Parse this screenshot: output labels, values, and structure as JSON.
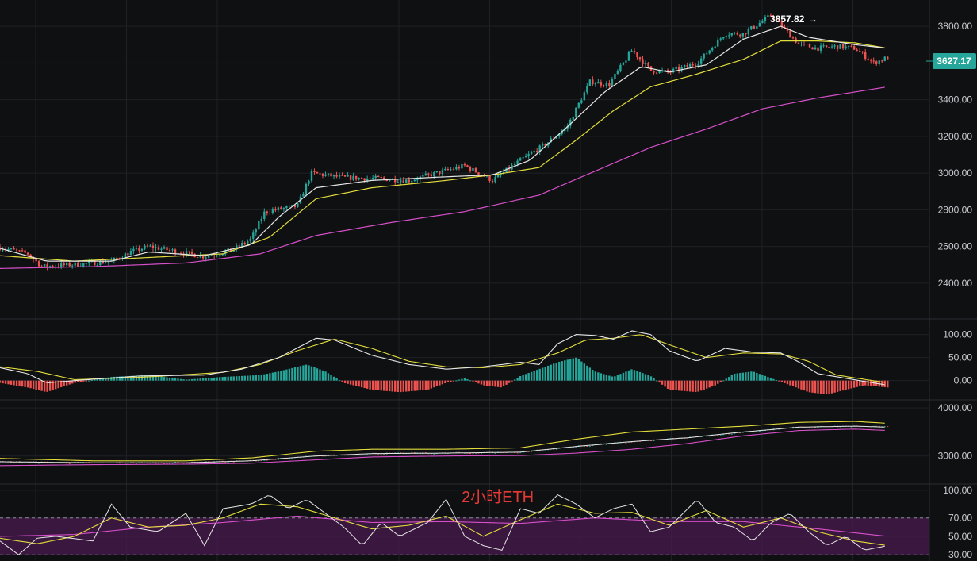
{
  "chart_title": "2小时ETH",
  "colors": {
    "background": "#0f1012",
    "grid": "#1f2126",
    "up": "#26a69a",
    "down": "#ef5350",
    "ma_fast": "#e6e6e6",
    "ma_mid": "#e3dd3c",
    "ma_slow": "#d64fc9",
    "rsi_band": "#4a1a4f",
    "price_tag": "#26a69a"
  },
  "main_panel": {
    "high_label": "3857.82",
    "last_price": "3627.17",
    "ticks": [
      {
        "value": 3800,
        "label": "3800.00"
      },
      {
        "value": 3600,
        "label": "3600.00"
      },
      {
        "value": 3400,
        "label": "3400.00"
      },
      {
        "value": 3200,
        "label": "3200.00"
      },
      {
        "value": 3000,
        "label": "3000.00"
      },
      {
        "value": 2800,
        "label": "2800.00"
      },
      {
        "value": 2600,
        "label": "2600.00"
      },
      {
        "value": 2400,
        "label": "2400.00"
      }
    ]
  },
  "macd_panel": {
    "ticks": [
      {
        "value": 100,
        "label": "100.00"
      },
      {
        "value": 50,
        "label": "50.00"
      },
      {
        "value": 0,
        "label": "0.00"
      }
    ]
  },
  "boll_panel": {
    "ticks": [
      {
        "value": 4000,
        "label": "4000.00"
      },
      {
        "value": 3000,
        "label": "3000.00"
      }
    ]
  },
  "rsi_panel": {
    "ticks": [
      {
        "value": 100,
        "label": "100.00"
      },
      {
        "value": 70,
        "label": "70.00"
      },
      {
        "value": 50,
        "label": "50.00"
      },
      {
        "value": 30,
        "label": "30.00"
      }
    ]
  },
  "chart_data": [
    {
      "type": "candlestick",
      "title": "2小时ETH",
      "ylim": [
        2300,
        3900
      ],
      "price_path": [
        [
          0,
          2595
        ],
        [
          0.03,
          2560
        ],
        [
          0.045,
          2490
        ],
        [
          0.09,
          2505
        ],
        [
          0.12,
          2520
        ],
        [
          0.14,
          2570
        ],
        [
          0.16,
          2600
        ],
        [
          0.22,
          2545
        ],
        [
          0.25,
          2580
        ],
        [
          0.27,
          2640
        ],
        [
          0.285,
          2790
        ],
        [
          0.32,
          2820
        ],
        [
          0.335,
          3000
        ],
        [
          0.37,
          2975
        ],
        [
          0.41,
          2970
        ],
        [
          0.44,
          2960
        ],
        [
          0.47,
          3000
        ],
        [
          0.5,
          3040
        ],
        [
          0.53,
          2960
        ],
        [
          0.56,
          3070
        ],
        [
          0.585,
          3150
        ],
        [
          0.61,
          3250
        ],
        [
          0.635,
          3500
        ],
        [
          0.655,
          3480
        ],
        [
          0.68,
          3670
        ],
        [
          0.7,
          3560
        ],
        [
          0.72,
          3550
        ],
        [
          0.75,
          3600
        ],
        [
          0.78,
          3760
        ],
        [
          0.8,
          3760
        ],
        [
          0.83,
          3860
        ],
        [
          0.86,
          3700
        ],
        [
          0.88,
          3680
        ],
        [
          0.9,
          3690
        ],
        [
          0.92,
          3680
        ],
        [
          0.94,
          3600
        ],
        [
          0.955,
          3630
        ]
      ],
      "ma_fast_path": [
        [
          0,
          2590
        ],
        [
          0.05,
          2520
        ],
        [
          0.12,
          2520
        ],
        [
          0.16,
          2570
        ],
        [
          0.22,
          2550
        ],
        [
          0.27,
          2610
        ],
        [
          0.3,
          2760
        ],
        [
          0.34,
          2920
        ],
        [
          0.4,
          2960
        ],
        [
          0.48,
          2980
        ],
        [
          0.53,
          2990
        ],
        [
          0.57,
          3070
        ],
        [
          0.61,
          3250
        ],
        [
          0.65,
          3440
        ],
        [
          0.69,
          3580
        ],
        [
          0.72,
          3550
        ],
        [
          0.76,
          3590
        ],
        [
          0.8,
          3730
        ],
        [
          0.84,
          3800
        ],
        [
          0.87,
          3740
        ],
        [
          0.92,
          3700
        ],
        [
          0.955,
          3680
        ]
      ],
      "ma_mid_path": [
        [
          0,
          2550
        ],
        [
          0.08,
          2520
        ],
        [
          0.16,
          2540
        ],
        [
          0.24,
          2560
        ],
        [
          0.29,
          2650
        ],
        [
          0.34,
          2860
        ],
        [
          0.4,
          2920
        ],
        [
          0.48,
          2960
        ],
        [
          0.53,
          2990
        ],
        [
          0.58,
          3030
        ],
        [
          0.62,
          3180
        ],
        [
          0.66,
          3340
        ],
        [
          0.7,
          3470
        ],
        [
          0.75,
          3540
        ],
        [
          0.8,
          3620
        ],
        [
          0.84,
          3720
        ],
        [
          0.88,
          3720
        ],
        [
          0.92,
          3710
        ],
        [
          0.955,
          3680
        ]
      ],
      "ma_slow_path": [
        [
          0,
          2480
        ],
        [
          0.1,
          2490
        ],
        [
          0.2,
          2510
        ],
        [
          0.28,
          2560
        ],
        [
          0.34,
          2660
        ],
        [
          0.42,
          2730
        ],
        [
          0.5,
          2790
        ],
        [
          0.58,
          2880
        ],
        [
          0.64,
          3010
        ],
        [
          0.7,
          3140
        ],
        [
          0.76,
          3240
        ],
        [
          0.82,
          3350
        ],
        [
          0.88,
          3410
        ],
        [
          0.955,
          3470
        ]
      ]
    },
    {
      "type": "bar",
      "name": "MACD",
      "ylim": [
        -35,
        120
      ],
      "hist_path": [
        [
          0,
          -5
        ],
        [
          0.03,
          -15
        ],
        [
          0.05,
          -25
        ],
        [
          0.08,
          -5
        ],
        [
          0.12,
          8
        ],
        [
          0.16,
          12
        ],
        [
          0.2,
          2
        ],
        [
          0.24,
          8
        ],
        [
          0.28,
          12
        ],
        [
          0.3,
          20
        ],
        [
          0.33,
          35
        ],
        [
          0.35,
          20
        ],
        [
          0.37,
          -5
        ],
        [
          0.4,
          -20
        ],
        [
          0.43,
          -25
        ],
        [
          0.46,
          -20
        ],
        [
          0.48,
          -5
        ],
        [
          0.5,
          5
        ],
        [
          0.52,
          -10
        ],
        [
          0.54,
          -15
        ],
        [
          0.56,
          10
        ],
        [
          0.6,
          40
        ],
        [
          0.62,
          50
        ],
        [
          0.64,
          20
        ],
        [
          0.66,
          8
        ],
        [
          0.68,
          25
        ],
        [
          0.7,
          10
        ],
        [
          0.72,
          -20
        ],
        [
          0.75,
          -25
        ],
        [
          0.77,
          -10
        ],
        [
          0.79,
          15
        ],
        [
          0.81,
          20
        ],
        [
          0.83,
          5
        ],
        [
          0.85,
          -10
        ],
        [
          0.87,
          -25
        ],
        [
          0.89,
          -30
        ],
        [
          0.91,
          -20
        ],
        [
          0.93,
          -10
        ],
        [
          0.955,
          -15
        ]
      ],
      "macd_path": [
        [
          0,
          28
        ],
        [
          0.03,
          15
        ],
        [
          0.05,
          -5
        ],
        [
          0.08,
          0
        ],
        [
          0.15,
          10
        ],
        [
          0.22,
          12
        ],
        [
          0.26,
          25
        ],
        [
          0.3,
          50
        ],
        [
          0.34,
          92
        ],
        [
          0.36,
          88
        ],
        [
          0.4,
          55
        ],
        [
          0.44,
          35
        ],
        [
          0.48,
          25
        ],
        [
          0.52,
          30
        ],
        [
          0.56,
          40
        ],
        [
          0.58,
          35
        ],
        [
          0.6,
          80
        ],
        [
          0.62,
          100
        ],
        [
          0.64,
          98
        ],
        [
          0.66,
          90
        ],
        [
          0.68,
          108
        ],
        [
          0.7,
          100
        ],
        [
          0.72,
          65
        ],
        [
          0.75,
          42
        ],
        [
          0.78,
          70
        ],
        [
          0.81,
          62
        ],
        [
          0.84,
          60
        ],
        [
          0.86,
          40
        ],
        [
          0.88,
          15
        ],
        [
          0.91,
          5
        ],
        [
          0.955,
          -10
        ]
      ],
      "signal_path": [
        [
          0,
          30
        ],
        [
          0.04,
          20
        ],
        [
          0.08,
          2
        ],
        [
          0.16,
          8
        ],
        [
          0.24,
          18
        ],
        [
          0.28,
          35
        ],
        [
          0.32,
          65
        ],
        [
          0.36,
          90
        ],
        [
          0.4,
          70
        ],
        [
          0.44,
          42
        ],
        [
          0.48,
          30
        ],
        [
          0.52,
          28
        ],
        [
          0.56,
          35
        ],
        [
          0.6,
          60
        ],
        [
          0.63,
          88
        ],
        [
          0.66,
          92
        ],
        [
          0.69,
          100
        ],
        [
          0.72,
          78
        ],
        [
          0.76,
          50
        ],
        [
          0.8,
          60
        ],
        [
          0.84,
          58
        ],
        [
          0.87,
          42
        ],
        [
          0.9,
          12
        ],
        [
          0.955,
          -5
        ]
      ]
    },
    {
      "type": "line",
      "name": "BOLL",
      "ylim": [
        2500,
        4150
      ],
      "mid_path": [
        [
          0,
          2880
        ],
        [
          0.1,
          2860
        ],
        [
          0.2,
          2860
        ],
        [
          0.27,
          2900
        ],
        [
          0.34,
          3000
        ],
        [
          0.4,
          3050
        ],
        [
          0.48,
          3060
        ],
        [
          0.56,
          3080
        ],
        [
          0.62,
          3200
        ],
        [
          0.68,
          3300
        ],
        [
          0.74,
          3380
        ],
        [
          0.8,
          3500
        ],
        [
          0.86,
          3600
        ],
        [
          0.92,
          3620
        ],
        [
          0.955,
          3600
        ]
      ],
      "upper_path": [
        [
          0,
          2950
        ],
        [
          0.1,
          2900
        ],
        [
          0.2,
          2900
        ],
        [
          0.27,
          2960
        ],
        [
          0.34,
          3100
        ],
        [
          0.4,
          3140
        ],
        [
          0.48,
          3140
        ],
        [
          0.56,
          3170
        ],
        [
          0.62,
          3350
        ],
        [
          0.68,
          3500
        ],
        [
          0.74,
          3560
        ],
        [
          0.8,
          3620
        ],
        [
          0.86,
          3700
        ],
        [
          0.92,
          3720
        ],
        [
          0.955,
          3680
        ]
      ],
      "lower_path": [
        [
          0,
          2800
        ],
        [
          0.1,
          2820
        ],
        [
          0.2,
          2830
        ],
        [
          0.27,
          2850
        ],
        [
          0.34,
          2920
        ],
        [
          0.4,
          2980
        ],
        [
          0.48,
          3000
        ],
        [
          0.56,
          3010
        ],
        [
          0.62,
          3060
        ],
        [
          0.68,
          3140
        ],
        [
          0.74,
          3260
        ],
        [
          0.8,
          3420
        ],
        [
          0.86,
          3530
        ],
        [
          0.92,
          3560
        ],
        [
          0.955,
          3530
        ]
      ]
    },
    {
      "type": "line",
      "name": "RSI",
      "ylim": [
        25,
        105
      ],
      "band": [
        30,
        70
      ],
      "rsi_fast_path": [
        [
          0,
          45
        ],
        [
          0.02,
          30
        ],
        [
          0.04,
          48
        ],
        [
          0.06,
          50
        ],
        [
          0.1,
          45
        ],
        [
          0.12,
          85
        ],
        [
          0.14,
          60
        ],
        [
          0.17,
          55
        ],
        [
          0.2,
          75
        ],
        [
          0.22,
          40
        ],
        [
          0.24,
          80
        ],
        [
          0.27,
          85
        ],
        [
          0.29,
          95
        ],
        [
          0.31,
          80
        ],
        [
          0.33,
          90
        ],
        [
          0.35,
          75
        ],
        [
          0.37,
          60
        ],
        [
          0.39,
          40
        ],
        [
          0.41,
          65
        ],
        [
          0.43,
          50
        ],
        [
          0.46,
          65
        ],
        [
          0.48,
          90
        ],
        [
          0.5,
          50
        ],
        [
          0.52,
          40
        ],
        [
          0.54,
          35
        ],
        [
          0.56,
          80
        ],
        [
          0.58,
          75
        ],
        [
          0.6,
          95
        ],
        [
          0.62,
          85
        ],
        [
          0.64,
          70
        ],
        [
          0.66,
          80
        ],
        [
          0.68,
          85
        ],
        [
          0.7,
          55
        ],
        [
          0.72,
          60
        ],
        [
          0.75,
          90
        ],
        [
          0.77,
          65
        ],
        [
          0.79,
          60
        ],
        [
          0.81,
          45
        ],
        [
          0.83,
          65
        ],
        [
          0.85,
          75
        ],
        [
          0.87,
          55
        ],
        [
          0.89,
          40
        ],
        [
          0.91,
          50
        ],
        [
          0.93,
          35
        ],
        [
          0.955,
          40
        ]
      ],
      "rsi_mid_path": [
        [
          0,
          48
        ],
        [
          0.04,
          42
        ],
        [
          0.08,
          50
        ],
        [
          0.12,
          70
        ],
        [
          0.16,
          60
        ],
        [
          0.2,
          62
        ],
        [
          0.24,
          70
        ],
        [
          0.28,
          85
        ],
        [
          0.32,
          82
        ],
        [
          0.36,
          70
        ],
        [
          0.4,
          58
        ],
        [
          0.44,
          62
        ],
        [
          0.48,
          72
        ],
        [
          0.52,
          50
        ],
        [
          0.56,
          68
        ],
        [
          0.6,
          85
        ],
        [
          0.64,
          75
        ],
        [
          0.68,
          76
        ],
        [
          0.72,
          62
        ],
        [
          0.76,
          78
        ],
        [
          0.8,
          60
        ],
        [
          0.84,
          70
        ],
        [
          0.88,
          55
        ],
        [
          0.92,
          45
        ],
        [
          0.955,
          40
        ]
      ],
      "rsi_slow_path": [
        [
          0,
          50
        ],
        [
          0.08,
          52
        ],
        [
          0.16,
          60
        ],
        [
          0.24,
          65
        ],
        [
          0.32,
          72
        ],
        [
          0.4,
          65
        ],
        [
          0.48,
          66
        ],
        [
          0.56,
          64
        ],
        [
          0.64,
          70
        ],
        [
          0.72,
          66
        ],
        [
          0.8,
          66
        ],
        [
          0.88,
          58
        ],
        [
          0.955,
          50
        ]
      ]
    }
  ]
}
